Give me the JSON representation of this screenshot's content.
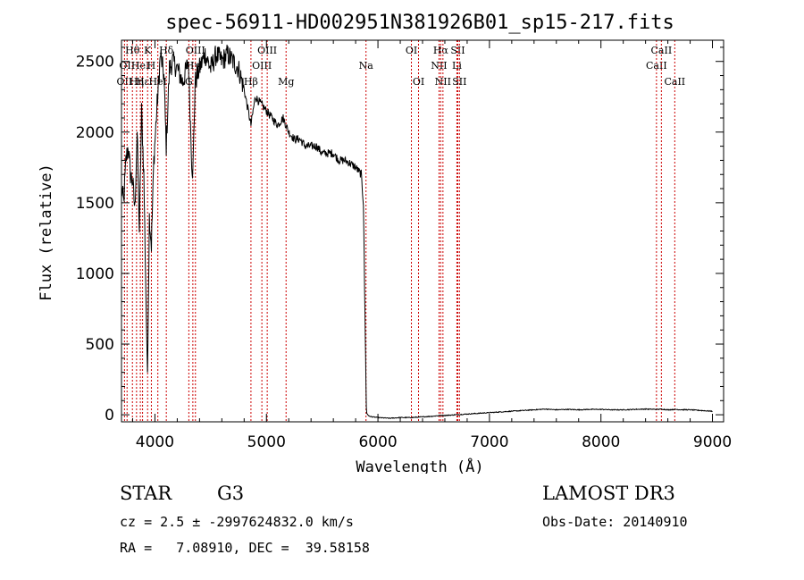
{
  "chart_data": {
    "type": "line",
    "title": "spec-56911-HD002951N381926B01_sp15-217.fits",
    "xlabel": "Wavelength (Å)",
    "ylabel": "Flux (relative)",
    "xlim": [
      3700,
      9100
    ],
    "ylim": [
      -50,
      2650
    ],
    "xticks": [
      4000,
      5000,
      6000,
      7000,
      8000,
      9000
    ],
    "yticks": [
      0,
      500,
      1000,
      1500,
      2000,
      2500
    ],
    "series": [
      {
        "name": "flux",
        "x": [
          3700,
          3720,
          3740,
          3760,
          3780,
          3800,
          3820,
          3840,
          3860,
          3880,
          3900,
          3920,
          3933,
          3950,
          3968,
          3990,
          4020,
          4050,
          4080,
          4101,
          4130,
          4160,
          4200,
          4250,
          4300,
          4330,
          4340,
          4360,
          4400,
          4450,
          4500,
          4550,
          4600,
          4650,
          4700,
          4750,
          4800,
          4861,
          4900,
          4950,
          5000,
          5050,
          5100,
          5150,
          5200,
          5250,
          5300,
          5350,
          5400,
          5450,
          5500,
          5550,
          5600,
          5650,
          5700,
          5750,
          5800,
          5850,
          5870,
          5880,
          5890,
          5893,
          5896,
          5900,
          5920,
          5950,
          6000,
          6100,
          6200,
          6300,
          6400,
          6500,
          6563,
          6600,
          6700,
          6800,
          6900,
          7000,
          7100,
          7200,
          7300,
          7400,
          7500,
          7600,
          7700,
          7800,
          7900,
          8000,
          8100,
          8200,
          8300,
          8400,
          8498,
          8542,
          8600,
          8662,
          8700,
          8800,
          8900,
          9000
        ],
        "values": [
          1600,
          1500,
          1800,
          1900,
          1700,
          1650,
          1450,
          2000,
          1300,
          2150,
          1700,
          800,
          300,
          1400,
          1200,
          1800,
          2200,
          2550,
          2400,
          1900,
          2450,
          2500,
          2450,
          2350,
          2500,
          1800,
          1700,
          2350,
          2450,
          2550,
          2450,
          2550,
          2500,
          2550,
          2500,
          2450,
          2300,
          2050,
          2250,
          2200,
          2150,
          2100,
          2050,
          2100,
          2000,
          1950,
          1950,
          1900,
          1900,
          1900,
          1850,
          1850,
          1850,
          1800,
          1800,
          1780,
          1750,
          1700,
          1500,
          900,
          400,
          200,
          50,
          10,
          -10,
          -15,
          -20,
          -25,
          -20,
          -20,
          -15,
          -10,
          -5,
          -5,
          0,
          5,
          10,
          15,
          20,
          25,
          30,
          35,
          40,
          35,
          38,
          35,
          38,
          38,
          35,
          35,
          38,
          40,
          38,
          40,
          35,
          38,
          36,
          35,
          30,
          25
        ]
      }
    ],
    "lines": [
      {
        "wave": 3727,
        "label": "OII",
        "row": 2
      },
      {
        "wave": 3750,
        "label": "OII",
        "row": 1
      },
      {
        "wave": 3798,
        "label": "Hθ",
        "row": 0
      },
      {
        "wave": 3835,
        "label": "Hη",
        "row": 2
      },
      {
        "wave": 3869,
        "label": "HeI",
        "row": 1
      },
      {
        "wave": 3889,
        "label": "Hε",
        "row": 2
      },
      {
        "wave": 3934,
        "label": "K",
        "row": 0
      },
      {
        "wave": 3968,
        "label": "H",
        "row": 1
      },
      {
        "wave": 4026,
        "label": "HeI",
        "row": 2
      },
      {
        "wave": 4102,
        "label": "Hδ",
        "row": 0
      },
      {
        "wave": 4304,
        "label": "G",
        "row": 2
      },
      {
        "wave": 4340,
        "label": "Hγ",
        "row": 1
      },
      {
        "wave": 4363,
        "label": "OIII",
        "row": 0
      },
      {
        "wave": 4861,
        "label": "Hβ",
        "row": 2
      },
      {
        "wave": 4959,
        "label": "OIII",
        "row": 1
      },
      {
        "wave": 5007,
        "label": "OIII",
        "row": 0
      },
      {
        "wave": 5176,
        "label": "Mg",
        "row": 2
      },
      {
        "wave": 5893,
        "label": "Na",
        "row": 1
      },
      {
        "wave": 6300,
        "label": "OI",
        "row": 0
      },
      {
        "wave": 6364,
        "label": "OI",
        "row": 2
      },
      {
        "wave": 6548,
        "label": "NII",
        "row": 1
      },
      {
        "wave": 6563,
        "label": "Hα",
        "row": 0
      },
      {
        "wave": 6583,
        "label": "NII",
        "row": 2
      },
      {
        "wave": 6708,
        "label": "Li",
        "row": 1
      },
      {
        "wave": 6716,
        "label": "SII",
        "row": 0
      },
      {
        "wave": 6731,
        "label": "SII",
        "row": 2
      },
      {
        "wave": 8498,
        "label": "CaII",
        "row": 1
      },
      {
        "wave": 8542,
        "label": "CaII",
        "row": 0
      },
      {
        "wave": 8662,
        "label": "CaII",
        "row": 2
      }
    ]
  },
  "info": {
    "object_class": "STAR",
    "subclass": "G3",
    "survey": "LAMOST DR3",
    "cz": "cz = 2.5 ± -2997624832.0 km/s",
    "obs_date": "Obs-Date: 20140910",
    "coords": "RA =   7.08910, DEC =  39.58158"
  },
  "colors": {
    "line_marker": "#cc0000",
    "spectrum": "#000000"
  }
}
